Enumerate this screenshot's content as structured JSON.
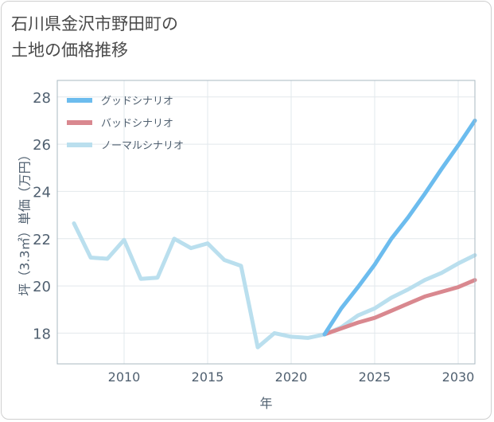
{
  "title_lines": [
    "石川県金沢市野田町の",
    "土地の価格推移"
  ],
  "colors": {
    "good": "#6cbcee",
    "bad": "#d9888f",
    "normal": "#badfee",
    "grid": "#e2e8ec",
    "frame": "#aab8c2",
    "text": "#506070"
  },
  "chart_data": {
    "type": "line",
    "title": "石川県金沢市野田町の土地の価格推移",
    "xlabel": "年",
    "ylabel": "坪（3.3㎡）単価（万円）",
    "xlim": [
      2006,
      2031
    ],
    "ylim": [
      16.7,
      28.7
    ],
    "xticks": [
      2010,
      2015,
      2020,
      2025,
      2030
    ],
    "yticks": [
      18,
      20,
      22,
      24,
      26,
      28
    ],
    "grid": true,
    "legend_position": "top-left",
    "series": [
      {
        "name": "グッドシナリオ",
        "key": "good",
        "x": [
          2022,
          2023,
          2024,
          2025,
          2026,
          2027,
          2028,
          2029,
          2030,
          2031
        ],
        "y": [
          17.95,
          19.05,
          19.95,
          20.9,
          22.0,
          22.9,
          23.9,
          24.95,
          25.95,
          27.0
        ]
      },
      {
        "name": "バッドシナリオ",
        "key": "bad",
        "x": [
          2022,
          2023,
          2024,
          2025,
          2026,
          2027,
          2028,
          2029,
          2030,
          2031
        ],
        "y": [
          17.95,
          18.2,
          18.45,
          18.65,
          18.95,
          19.25,
          19.55,
          19.75,
          19.95,
          20.25
        ]
      },
      {
        "name": "ノーマルシナリオ",
        "key": "normal",
        "x": [
          2007,
          2008,
          2009,
          2010,
          2011,
          2012,
          2013,
          2014,
          2015,
          2016,
          2017,
          2018,
          2019,
          2020,
          2021,
          2022,
          2023,
          2024,
          2025,
          2026,
          2027,
          2028,
          2029,
          2030,
          2031
        ],
        "y": [
          22.65,
          21.2,
          21.15,
          21.95,
          20.3,
          20.35,
          22.0,
          21.6,
          21.8,
          21.1,
          20.85,
          17.4,
          18.0,
          17.85,
          17.8,
          17.95,
          18.25,
          18.75,
          19.05,
          19.5,
          19.85,
          20.25,
          20.55,
          20.95,
          21.3
        ]
      }
    ]
  }
}
